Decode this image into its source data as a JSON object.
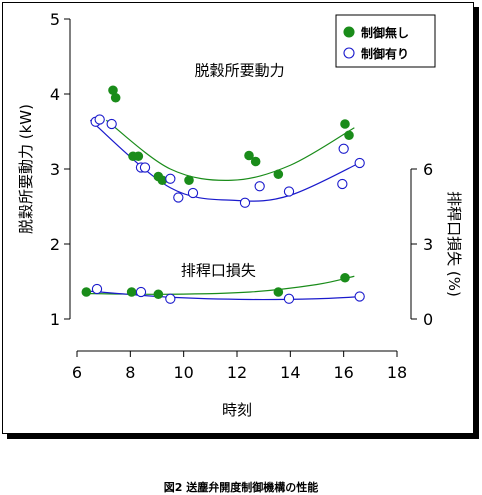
{
  "caption": "図2 送塵弁開度制御機構の性能",
  "chart_data": {
    "type": "scatter",
    "xlabel": "時刻",
    "ylabel_left": "脱穀所要動力 (kW)",
    "ylabel_right": "排稈口損失 (%)",
    "xlim": [
      6,
      18
    ],
    "xticks": [
      6,
      8,
      10,
      12,
      14,
      16,
      18
    ],
    "ylim_left": [
      1,
      5
    ],
    "yticks_left": [
      1,
      2,
      3,
      4,
      5
    ],
    "ylim_right": [
      0,
      6
    ],
    "yticks_right": [
      0,
      3,
      6
    ],
    "grid": false,
    "legend_position": "top-right",
    "annotations": [
      {
        "text": "脱穀所要動力",
        "x": 12.1,
        "y": 4.25
      },
      {
        "text": "排稈口損失",
        "x": 11.3,
        "y": 1.58
      }
    ],
    "series": [
      {
        "name": "制御無し",
        "marker": "filled-circle",
        "color": "#1a8c1a",
        "power_points": [
          [
            7.35,
            4.05
          ],
          [
            7.45,
            3.95
          ],
          [
            8.1,
            3.17
          ],
          [
            8.3,
            3.17
          ],
          [
            9.05,
            2.9
          ],
          [
            9.2,
            2.85
          ],
          [
            10.2,
            2.85
          ],
          [
            12.45,
            3.18
          ],
          [
            12.7,
            3.1
          ],
          [
            13.55,
            2.93
          ],
          [
            16.05,
            3.6
          ],
          [
            16.2,
            3.45
          ]
        ],
        "power_curve": [
          [
            7.1,
            3.65
          ],
          [
            9.5,
            3.0
          ],
          [
            11.8,
            2.85
          ],
          [
            14.0,
            3.05
          ],
          [
            16.4,
            3.55
          ]
        ],
        "loss_points": [
          [
            6.35,
            1.36
          ],
          [
            8.05,
            1.36
          ],
          [
            9.05,
            1.33
          ],
          [
            13.55,
            1.36
          ],
          [
            16.05,
            1.55
          ]
        ],
        "loss_curve": [
          [
            6.3,
            1.34
          ],
          [
            9.5,
            1.33
          ],
          [
            12.5,
            1.36
          ],
          [
            15.0,
            1.46
          ],
          [
            16.4,
            1.57
          ]
        ]
      },
      {
        "name": "制御有り",
        "marker": "open-circle",
        "color": "#1a1acc",
        "power_points": [
          [
            6.7,
            3.63
          ],
          [
            6.85,
            3.66
          ],
          [
            7.3,
            3.6
          ],
          [
            8.4,
            3.02
          ],
          [
            8.55,
            3.02
          ],
          [
            9.5,
            2.87
          ],
          [
            9.8,
            2.62
          ],
          [
            10.35,
            2.68
          ],
          [
            12.3,
            2.55
          ],
          [
            12.85,
            2.77
          ],
          [
            13.95,
            2.7
          ],
          [
            15.95,
            2.8
          ],
          [
            16.0,
            3.27
          ],
          [
            16.6,
            3.08
          ]
        ],
        "power_curve": [
          [
            6.5,
            3.65
          ],
          [
            9.5,
            2.75
          ],
          [
            12.0,
            2.58
          ],
          [
            14.0,
            2.65
          ],
          [
            16.7,
            3.1
          ]
        ],
        "loss_points": [
          [
            6.75,
            1.4
          ],
          [
            8.4,
            1.36
          ],
          [
            9.5,
            1.27
          ],
          [
            13.95,
            1.27
          ],
          [
            16.6,
            1.3
          ]
        ],
        "loss_curve": [
          [
            6.5,
            1.37
          ],
          [
            9.5,
            1.29
          ],
          [
            12.5,
            1.26
          ],
          [
            15.0,
            1.27
          ],
          [
            16.7,
            1.3
          ]
        ]
      }
    ]
  }
}
